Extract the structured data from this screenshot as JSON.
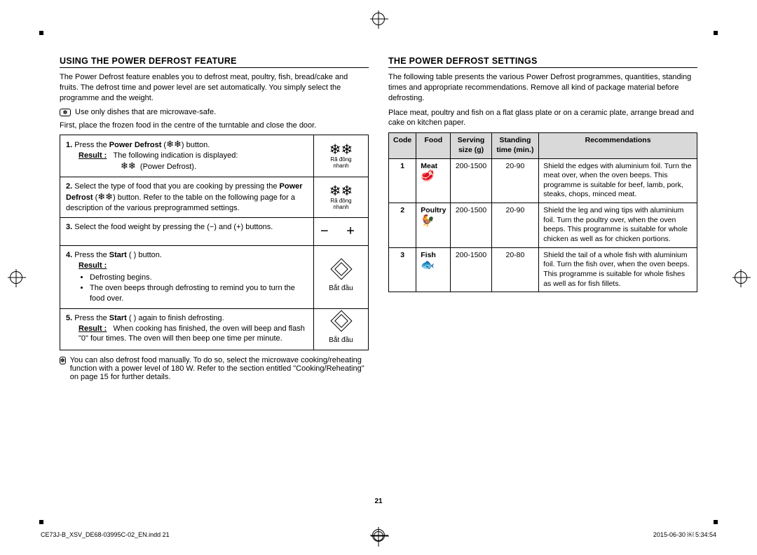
{
  "pageNumber": "21",
  "footer": {
    "left": "CE73J-B_XSV_DE68-03995C-02_EN.indd   21",
    "right": "2015-06-30   ￼ 5:34:54"
  },
  "left": {
    "heading": "USING THE POWER DEFROST FEATURE",
    "intro": "The Power Defrost feature enables you to defrost meat, poultry, fish, bread/cake and fruits. The defrost time and power level are set automatically. You simply select the programme and the weight.",
    "note1": "Use only dishes that are microwave-safe.",
    "intro2": "First, place the frozen food in the centre of the turntable and close the door.",
    "step1a": "Press the ",
    "step1b": "Power Defrost",
    "step1c": " (",
    "step1d": ") button.",
    "result": "Result :",
    "step1resA": "The following indication is displayed:",
    "step1resB": "(Power Defrost).",
    "icon1a": "❄❄",
    "icon1b": "Rã đông",
    "icon1c": "nhanh",
    "step2": "Select the type of food that you are cooking by pressing the ",
    "step2b": "Power Defrost",
    "step2c": " (",
    "step2d": ") button. Refer to the table on the following page for a description of the various preprogrammed settings.",
    "step3": "Select the food weight by pressing the (−) and (+) buttons.",
    "step4a": "Press the ",
    "step4b": "Start",
    "step4c": " ( ) button.",
    "step4res1": "Defrosting begins.",
    "step4res2": "The oven beeps through defrosting to remind you to turn the food over.",
    "startLabel": "Bắt đầu",
    "step5a": "Press the ",
    "step5b": "Start",
    "step5c": " ( ) again to finish defrosting.",
    "step5res": "When cooking has finished, the oven will beep and flash \"0\" four times. The oven will then beep one time per minute.",
    "note2": "You can also defrost food manually. To do so, select the microwave cooking/reheating function with a power level of 180 W. Refer to the section entitled \"Cooking/Reheating\" on page 15 for further details."
  },
  "right": {
    "heading": "THE POWER DEFROST SETTINGS",
    "p1": "The following table presents the various Power Defrost programmes, quantities, standing times and appropriate recommendations. Remove all kind of package material before defrosting.",
    "p2": "Place meat, poultry and fish on a flat glass plate or on a ceramic plate, arrange bread and cake on kitchen paper.",
    "th": {
      "code": "Code",
      "food": "Food",
      "serving": "Serving size (g)",
      "standing": "Standing time (min.)",
      "rec": "Recommendations"
    },
    "rows": [
      {
        "code": "1",
        "food": "Meat",
        "icon": "🥩",
        "serving": "200-1500",
        "standing": "20-90",
        "rec": "Shield the edges with aluminium foil. Turn the meat over, when the oven beeps. This programme is suitable for beef, lamb, pork, steaks, chops, minced meat."
      },
      {
        "code": "2",
        "food": "Poultry",
        "icon": "🐓",
        "serving": "200-1500",
        "standing": "20-90",
        "rec": "Shield the leg and wing tips with aluminium foil. Turn the poultry over, when the oven beeps. This programme is suitable for whole chicken as well as for chicken portions."
      },
      {
        "code": "3",
        "food": "Fish",
        "icon": "🐟",
        "serving": "200-1500",
        "standing": "20-80",
        "rec": "Shield the tail of a whole fish with aluminium foil. Turn the fish over, when the oven beeps. This programme is suitable for whole fishes as well as for fish fillets."
      }
    ]
  }
}
